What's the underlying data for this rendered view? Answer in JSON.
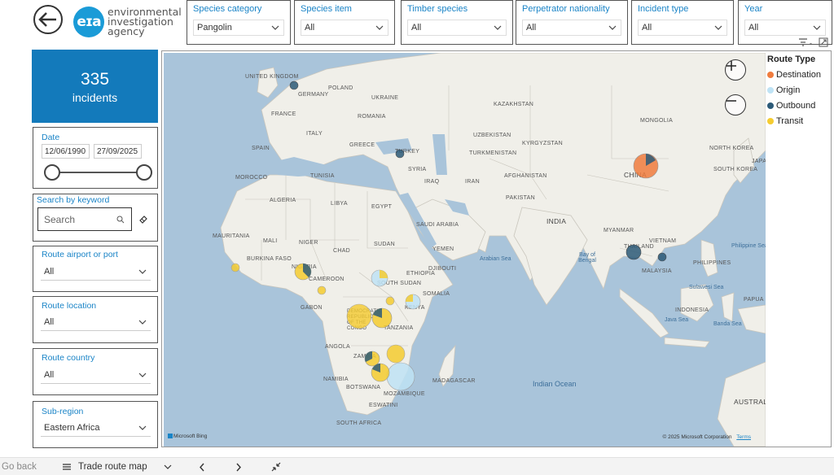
{
  "brand": {
    "line1": "environmental",
    "line2": "investigation",
    "line3": "agency",
    "mark": "eɪa"
  },
  "filters": [
    {
      "label": "Species category",
      "value": "Pangolin"
    },
    {
      "label": "Species item",
      "value": "All"
    },
    {
      "label": "Timber species",
      "value": "All"
    },
    {
      "label": "Perpetrator nationality",
      "value": "All"
    },
    {
      "label": "Incident type",
      "value": "All"
    },
    {
      "label": "Year",
      "value": "All"
    }
  ],
  "kpi": {
    "value": "335",
    "label": "incidents"
  },
  "date": {
    "label": "Date",
    "start": "12/06/1990",
    "end": "27/09/2025"
  },
  "keyword": {
    "label": "Search by keyword",
    "placeholder": "Search"
  },
  "route_airport": {
    "label": "Route airport or port",
    "value": "All"
  },
  "route_location": {
    "label": "Route location",
    "value": "All"
  },
  "route_country": {
    "label": "Route country",
    "value": "All"
  },
  "subregion": {
    "label": "Sub-region",
    "value": "Eastern Africa"
  },
  "legend": {
    "title": "Route Type",
    "items": [
      {
        "label": "Destination",
        "color": "#f07c3e"
      },
      {
        "label": "Origin",
        "color": "#bfe3f5"
      },
      {
        "label": "Outbound",
        "color": "#2c5a78"
      },
      {
        "label": "Transit",
        "color": "#f5cc30"
      }
    ]
  },
  "map_labels": {
    "countries": [
      "POLAND",
      "UKRAINE",
      "KAZAKHSTAN",
      "FRANCE",
      "ROMANIA",
      "MONGOLIA",
      "SPAIN",
      "TURKEY",
      "UZBEKISTAN",
      "SYRIA",
      "TURKMENISTAN",
      "KYRGYZSTAN",
      "NORTH KOREA",
      "MOROCCO",
      "TUNISIA",
      "IRAQ",
      "IRAN",
      "AFGHANISTAN",
      "CHINA",
      "SOUTH KOREA",
      "JAPAN",
      "ALGERIA",
      "LIBYA",
      "EGYPT",
      "PAKISTAN",
      "SAUDI ARABIA",
      "INDIA",
      "MAURITANIA",
      "MALI",
      "NIGER",
      "CHAD",
      "SUDAN",
      "YEMEN",
      "MYANMAR",
      "BURKINA FASO",
      "NIGERIA",
      "THAILAND",
      "VIETNAM",
      "CAMEROON",
      "ETHIOPIA",
      "SOMALIA",
      "PHILIPPINES",
      "GABON",
      "DEMOCRATIC REPUBLIC OF THE CONGO",
      "KENYA",
      "MALAYSIA",
      "TANZANIA",
      "INDONESIA",
      "ANGOLA",
      "ZAMBIA",
      "NAMIBIA",
      "MOZAMBIQUE",
      "BOTSWANA",
      "MADAGASCAR",
      "ESWATINI",
      "SOUTH AFRICA",
      "PAPUA NEW GUINEA",
      "AUSTRALIA",
      "GERMANY",
      "UNITED KINGDOM",
      "ITALY",
      "GREECE",
      "SOUTH SUDAN",
      "DJIBOUTI"
    ],
    "seas": [
      "Arabian Sea",
      "Bay of Bengal",
      "Philippine Sea",
      "Java Sea",
      "Banda Sea",
      "Sulawesi Sea"
    ],
    "ocean": "Indian Ocean"
  },
  "attribution": {
    "provider": "Microsoft Bing",
    "copyright": "© 2025 Microsoft Corporation",
    "terms": "Terms"
  },
  "footer": {
    "back": "Go back",
    "page": "Trade route map"
  }
}
